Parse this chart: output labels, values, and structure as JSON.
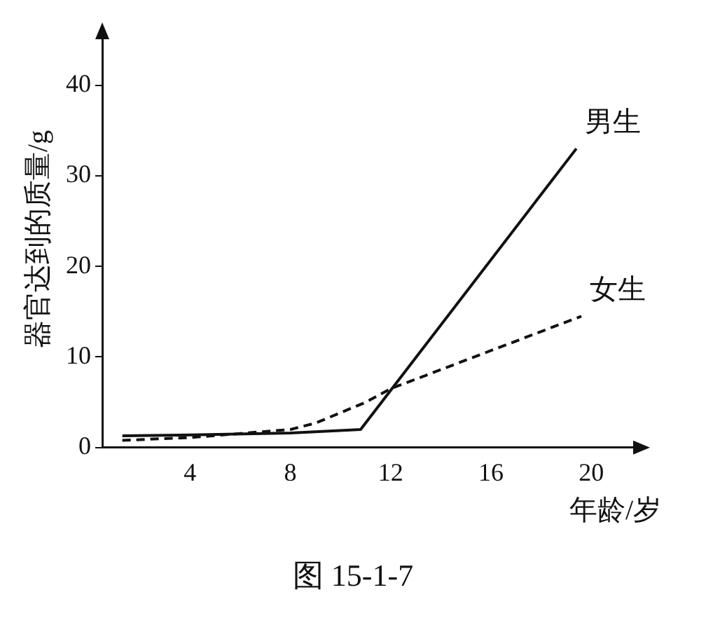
{
  "chart_data": {
    "type": "line",
    "xlabel": "年龄/岁",
    "ylabel": "器官达到的质量/g",
    "annotations": [
      "图 15-1-7"
    ],
    "xlim": [
      0.5,
      22
    ],
    "ylim": [
      0,
      46
    ],
    "xticks": [
      4,
      8,
      12,
      16,
      20
    ],
    "yticks": [
      0,
      10,
      20,
      30,
      40
    ],
    "grid": false,
    "legend": false,
    "marker": "none",
    "series": [
      {
        "name": "男生",
        "color": "#111111",
        "line_style": "solid",
        "x": [
          1.3,
          4,
          8,
          10.8,
          19.4
        ],
        "values": [
          1.3,
          1.4,
          1.6,
          2,
          33
        ]
      },
      {
        "name": "女生",
        "color": "#111111",
        "line_style": "dashed",
        "x": [
          1.3,
          4,
          8,
          9,
          11,
          12,
          19.6
        ],
        "values": [
          0.8,
          1.1,
          2,
          2.7,
          5,
          6.5,
          14.5
        ]
      }
    ]
  }
}
